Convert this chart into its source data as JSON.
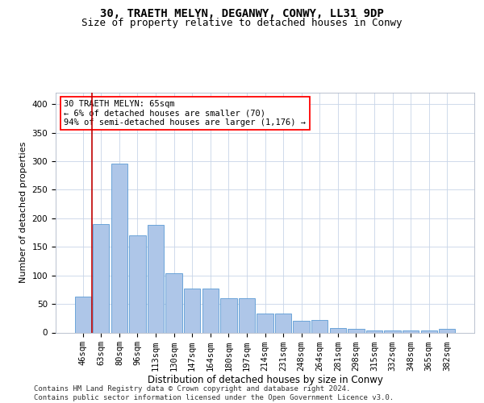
{
  "title1": "30, TRAETH MELYN, DEGANWY, CONWY, LL31 9DP",
  "title2": "Size of property relative to detached houses in Conwy",
  "xlabel": "Distribution of detached houses by size in Conwy",
  "ylabel": "Number of detached properties",
  "categories": [
    "46sqm",
    "63sqm",
    "80sqm",
    "96sqm",
    "113sqm",
    "130sqm",
    "147sqm",
    "164sqm",
    "180sqm",
    "197sqm",
    "214sqm",
    "231sqm",
    "248sqm",
    "264sqm",
    "281sqm",
    "298sqm",
    "315sqm",
    "332sqm",
    "348sqm",
    "365sqm",
    "382sqm"
  ],
  "values": [
    63,
    190,
    296,
    170,
    188,
    104,
    77,
    77,
    60,
    60,
    33,
    33,
    21,
    22,
    8,
    7,
    4,
    3,
    3,
    3,
    7
  ],
  "bar_color": "#aec6e8",
  "bar_edge_color": "#5b9bd5",
  "highlight_bar_index": 1,
  "highlight_color": "#c00000",
  "annotation_line1": "30 TRAETH MELYN: 65sqm",
  "annotation_line2": "← 6% of detached houses are smaller (70)",
  "annotation_line3": "94% of semi-detached houses are larger (1,176) →",
  "ylim": [
    0,
    420
  ],
  "yticks": [
    0,
    50,
    100,
    150,
    200,
    250,
    300,
    350,
    400
  ],
  "footer": "Contains HM Land Registry data © Crown copyright and database right 2024.\nContains public sector information licensed under the Open Government Licence v3.0.",
  "bg_color": "#ffffff",
  "grid_color": "#c8d4e8",
  "title1_fontsize": 10,
  "title2_fontsize": 9,
  "xlabel_fontsize": 8.5,
  "ylabel_fontsize": 8,
  "tick_fontsize": 7.5,
  "annotation_fontsize": 7.5,
  "footer_fontsize": 6.5
}
